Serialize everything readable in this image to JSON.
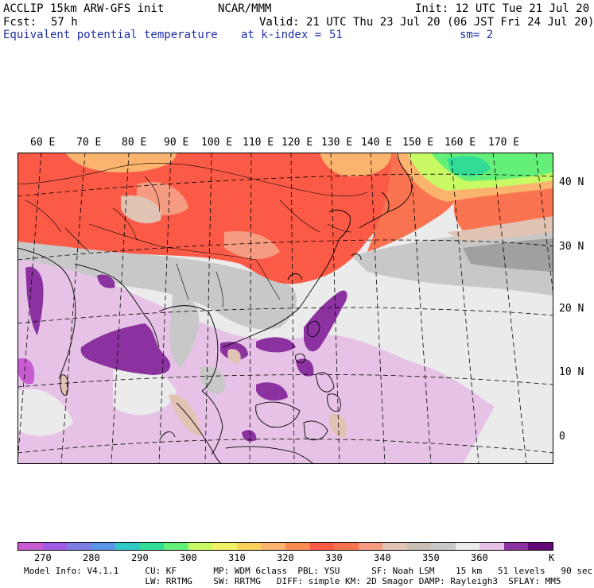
{
  "header": {
    "model": "ACCLIP 15km ARW-GFS init",
    "center": "NCAR/MMM",
    "init": "Init: 12 UTC Tue 21 Jul 20",
    "fcst_label": "Fcst:",
    "fcst_value": "57 h",
    "valid": "Valid: 21 UTC Thu 23 Jul 20 (06 JST Fri 24 Jul 20)",
    "field": "Equivalent potential temperature",
    "level_label": "at k-index =",
    "level_value": "51",
    "smooth": "sm= 2"
  },
  "map": {
    "lon_labels": [
      "60 E",
      "70 E",
      "80 E",
      "90 E",
      "100 E",
      "110 E",
      "120 E",
      "130 E",
      "140 E",
      "150 E",
      "160 E",
      "170 E"
    ],
    "lat_labels": [
      "40 N",
      "30 N",
      "20 N",
      "10 N",
      "0"
    ],
    "colors": {
      "violet": "#c85ad2",
      "purple": "#8c32a0",
      "dark_purple": "#640a78",
      "light_purple": "#e6c3e6",
      "light_gray": "#ebebeb",
      "gray": "#c8c8c8",
      "dark_gray": "#a0a0a0",
      "tan": "#e1c3b4",
      "salmon": "#f59b82",
      "red": "#fa5a46",
      "orange_red": "#fa7350",
      "light_orange": "#fab46e",
      "yellow_green": "#c8fa64",
      "green": "#64f078",
      "teal": "#32dc96"
    }
  },
  "colorbar": {
    "colors": [
      "#c85ad2",
      "#a05ae6",
      "#7d7de6",
      "#5a96e6",
      "#32c8c8",
      "#32dc96",
      "#64f078",
      "#c8fa64",
      "#f0f064",
      "#fad25a",
      "#fab46e",
      "#fa8c50",
      "#fa5a46",
      "#fa7350",
      "#f59b82",
      "#e1c3b4",
      "#c8beb4",
      "#c8c8c8",
      "#ebebeb",
      "#e6c3e6",
      "#8c32a0",
      "#640a78"
    ],
    "ticks": [
      "270",
      "280",
      "290",
      "300",
      "310",
      "320",
      "330",
      "340",
      "350",
      "360"
    ],
    "unit": "K"
  },
  "footer": {
    "line1": "Model Info: V4.1.1     CU: KF       MP: WDM 6class  PBL: YSU      SF: Noah LSM    15 km   51 levels   90 sec",
    "line2": "                       LW: RRTMG    SW: RRTMG   DIFF: simple KM: 2D Smagor DAMP: Rayleigh3  SFLAY: MM5"
  }
}
